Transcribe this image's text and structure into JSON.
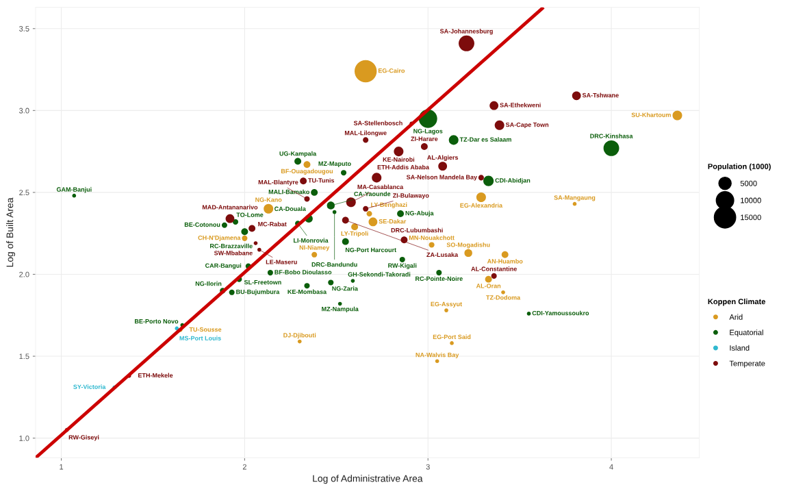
{
  "chart_data": {
    "type": "bubble",
    "xlabel": "Log of Administrative Area",
    "ylabel": "Log of Built Area",
    "legend_title": [
      "Population (1000)",
      "Koppen Climate"
    ],
    "size_legend": [
      5000,
      10000,
      15000
    ],
    "legend": "right",
    "grid": true,
    "xlim": [
      0.86,
      4.48
    ],
    "ylim": [
      0.88,
      3.63
    ],
    "xticks": [
      1,
      2,
      3,
      4
    ],
    "yticks": [
      {
        "value": 1,
        "label": "1.0"
      },
      1.5,
      {
        "value": 2,
        "label": "2.0"
      },
      2.5,
      {
        "value": 3,
        "label": "3.0"
      },
      3.5
    ],
    "series": [
      {
        "name": "Arid",
        "color": "#d99a20",
        "x": [
          2.66,
          4.36,
          3.29,
          3.8,
          2.13,
          2.34,
          2.0,
          2.38,
          3.02,
          3.22,
          3.42,
          3.33,
          3.41,
          3.1,
          3.13,
          3.05,
          2.3,
          2.6,
          2.7,
          2.68,
          1.65
        ],
        "values": [
          3.24,
          2.97,
          2.47,
          2.43,
          2.4,
          2.67,
          2.22,
          2.12,
          2.18,
          2.13,
          2.12,
          1.97,
          1.89,
          1.78,
          1.58,
          1.47,
          1.59,
          2.29,
          2.32,
          2.37,
          1.66
        ],
        "sizes": [
          16000,
          3000,
          3000,
          500,
          3000,
          1500,
          1000,
          1000,
          1000,
          2000,
          1500,
          1500,
          500,
          500,
          500,
          500,
          500,
          1500,
          2500,
          1000,
          500
        ]
      },
      {
        "name": "Equatorial",
        "color": "#0b5e0b",
        "x": [
          3.0,
          3.14,
          4.0,
          3.33,
          2.29,
          2.54,
          2.38,
          2.47,
          2.35,
          2.49,
          1.07,
          1.95,
          1.89,
          2.0,
          2.29,
          2.85,
          2.55,
          2.86,
          3.06,
          3.55,
          2.02,
          2.14,
          1.97,
          1.88,
          1.93,
          2.34,
          2.59,
          2.47,
          2.52,
          1.66
        ],
        "values": [
          2.95,
          2.82,
          2.77,
          2.57,
          2.69,
          2.62,
          2.5,
          2.42,
          2.34,
          2.38,
          2.48,
          2.32,
          2.3,
          2.26,
          2.31,
          2.37,
          2.2,
          2.09,
          2.01,
          1.76,
          2.05,
          2.01,
          1.97,
          1.9,
          1.89,
          1.93,
          1.96,
          1.95,
          1.82,
          1.69
        ],
        "sizes": [
          11000,
          3000,
          8000,
          3500,
          1500,
          1000,
          1500,
          2000,
          2000,
          500,
          500,
          1000,
          1000,
          1500,
          1000,
          1500,
          1500,
          1000,
          1000,
          500,
          1000,
          1000,
          1000,
          1000,
          1000,
          1000,
          500,
          1000,
          500,
          500
        ]
      },
      {
        "name": "Island",
        "color": "#2fb8cf",
        "x": [
          1.63,
          1.29
        ],
        "values": [
          1.67,
          1.31
        ],
        "sizes": [
          500,
          500
        ]
      },
      {
        "name": "Temperate",
        "color": "#7d0c0c",
        "x": [
          3.21,
          3.81,
          3.36,
          3.39,
          2.91,
          2.66,
          2.84,
          2.98,
          3.08,
          3.29,
          2.72,
          2.32,
          2.34,
          2.58,
          2.66,
          2.55,
          2.04,
          1.92,
          2.06,
          2.08,
          2.87,
          3.36,
          1.37,
          1.03
        ],
        "values": [
          3.41,
          3.09,
          3.03,
          2.91,
          2.92,
          2.82,
          2.75,
          2.78,
          2.66,
          2.59,
          2.59,
          2.57,
          2.46,
          2.44,
          2.4,
          2.33,
          2.28,
          2.34,
          2.19,
          2.15,
          2.21,
          1.99,
          1.38,
          1.05
        ],
        "sizes": [
          8000,
          2500,
          2500,
          3000,
          500,
          1000,
          3000,
          1500,
          2500,
          1000,
          3000,
          1500,
          1000,
          3000,
          1000,
          1500,
          1500,
          2500,
          500,
          500,
          1500,
          1000,
          500,
          500
        ]
      },
      {
        "type": "line",
        "color": "#cc0000",
        "x": [
          0.86,
          3.63
        ],
        "values": [
          0.88,
          3.63
        ]
      }
    ],
    "annotations": [
      {
        "text": "EG-Cairo",
        "x": 2.66,
        "y": 3.24
      },
      {
        "text": "SU-Khartoum",
        "x": 4.36,
        "y": 2.97
      },
      {
        "text": "EG-Alexandria",
        "x": 3.29,
        "y": 2.47
      },
      {
        "text": "SA-Mangaung",
        "x": 3.8,
        "y": 2.43
      },
      {
        "text": "NG-Kano",
        "x": 2.13,
        "y": 2.4
      },
      {
        "text": "BF-Ouagadougou",
        "x": 2.34,
        "y": 2.67
      },
      {
        "text": "CH-N'Djamena",
        "x": 2.0,
        "y": 2.22
      },
      {
        "text": "NI-Niamey",
        "x": 2.38,
        "y": 2.12
      },
      {
        "text": "MN-Nouakchott",
        "x": 3.02,
        "y": 2.18
      },
      {
        "text": "SO-Mogadishu",
        "x": 3.22,
        "y": 2.13
      },
      {
        "text": "AN-Huambo",
        "x": 3.42,
        "y": 2.12
      },
      {
        "text": "AL-Oran",
        "x": 3.33,
        "y": 1.97
      },
      {
        "text": "TZ-Dodoma",
        "x": 3.41,
        "y": 1.89
      },
      {
        "text": "EG-Assyut",
        "x": 3.1,
        "y": 1.78
      },
      {
        "text": "EG-Port Said",
        "x": 3.13,
        "y": 1.58
      },
      {
        "text": "NA-Walvis Bay",
        "x": 3.05,
        "y": 1.47
      },
      {
        "text": "DJ-Djibouti",
        "x": 2.3,
        "y": 1.59
      },
      {
        "text": "LY-Tripoli",
        "x": 2.6,
        "y": 2.29
      },
      {
        "text": "SE-Dakar",
        "x": 2.7,
        "y": 2.32
      },
      {
        "text": "LY-Benghazi",
        "x": 2.68,
        "y": 2.37
      },
      {
        "text": "TU-Sousse",
        "x": 1.65,
        "y": 1.66
      },
      {
        "text": "NG-Lagos",
        "x": 3.0,
        "y": 2.95
      },
      {
        "text": "TZ-Dar es Salaam",
        "x": 3.14,
        "y": 2.82
      },
      {
        "text": "DRC-Kinshasa",
        "x": 4.0,
        "y": 2.77
      },
      {
        "text": "CDI-Abidjan",
        "x": 3.33,
        "y": 2.57
      },
      {
        "text": "UG-Kampala",
        "x": 2.29,
        "y": 2.69
      },
      {
        "text": "MZ-Maputo",
        "x": 2.54,
        "y": 2.62
      },
      {
        "text": "MALI-Bamako",
        "x": 2.38,
        "y": 2.5
      },
      {
        "text": "CA-Yaounde",
        "x": 2.47,
        "y": 2.42
      },
      {
        "text": "CA-Douala",
        "x": 2.35,
        "y": 2.34
      },
      {
        "text": "DRC-Bandundu",
        "x": 2.49,
        "y": 2.38
      },
      {
        "text": "GAM-Banjui",
        "x": 1.07,
        "y": 2.48
      },
      {
        "text": "TO-Lome",
        "x": 1.95,
        "y": 2.32
      },
      {
        "text": "BE-Cotonou",
        "x": 1.89,
        "y": 2.3
      },
      {
        "text": "RC-Brazzaville",
        "x": 2.0,
        "y": 2.26
      },
      {
        "text": "LI-Monrovia",
        "x": 2.29,
        "y": 2.31
      },
      {
        "text": "NG-Abuja",
        "x": 2.85,
        "y": 2.37
      },
      {
        "text": "NG-Port Harcourt",
        "x": 2.55,
        "y": 2.2
      },
      {
        "text": "RW-Kigali",
        "x": 2.86,
        "y": 2.09
      },
      {
        "text": "RC-Pointe-Noire",
        "x": 3.06,
        "y": 2.01
      },
      {
        "text": "CDI-Yamoussoukro",
        "x": 3.55,
        "y": 1.76
      },
      {
        "text": "CAR-Bangui",
        "x": 2.02,
        "y": 2.05
      },
      {
        "text": "BF-Bobo Dioulasso",
        "x": 2.14,
        "y": 2.01
      },
      {
        "text": "SL-Freetown",
        "x": 1.97,
        "y": 1.97
      },
      {
        "text": "NG-Ilorin",
        "x": 1.88,
        "y": 1.9
      },
      {
        "text": "BU-Bujumbura",
        "x": 1.93,
        "y": 1.89
      },
      {
        "text": "KE-Mombasa",
        "x": 2.34,
        "y": 1.93
      },
      {
        "text": "GH-Sekondi-Takoradi",
        "x": 2.59,
        "y": 1.96
      },
      {
        "text": "NG-Zaria",
        "x": 2.47,
        "y": 1.95
      },
      {
        "text": "MZ-Nampula",
        "x": 2.52,
        "y": 1.82
      },
      {
        "text": "BE-Porto Novo",
        "x": 1.66,
        "y": 1.69
      },
      {
        "text": "MS-Port Louis",
        "x": 1.63,
        "y": 1.67
      },
      {
        "text": "SY-Victoria",
        "x": 1.29,
        "y": 1.31
      },
      {
        "text": "SA-Johannesburg",
        "x": 3.21,
        "y": 3.41
      },
      {
        "text": "SA-Tshwane",
        "x": 3.81,
        "y": 3.09
      },
      {
        "text": "SA-Ethekweni",
        "x": 3.36,
        "y": 3.03
      },
      {
        "text": "SA-Cape Town",
        "x": 3.39,
        "y": 2.91
      },
      {
        "text": "SA-Stellenbosch",
        "x": 2.91,
        "y": 2.92
      },
      {
        "text": "MAL-Lilongwe",
        "x": 2.66,
        "y": 2.82
      },
      {
        "text": "KE-Nairobi",
        "x": 2.84,
        "y": 2.75
      },
      {
        "text": "ZI-Harare",
        "x": 2.98,
        "y": 2.78
      },
      {
        "text": "AL-Algiers",
        "x": 3.08,
        "y": 2.66
      },
      {
        "text": "SA-Nelson Mandela Bay",
        "x": 3.29,
        "y": 2.59
      },
      {
        "text": "ETH-Addis Ababa",
        "x": 2.72,
        "y": 2.59
      },
      {
        "text": "TU-Tunis",
        "x": 2.32,
        "y": 2.57
      },
      {
        "text": "MAL-Blantyre",
        "x": 2.34,
        "y": 2.46
      },
      {
        "text": "MA-Casablanca",
        "x": 2.58,
        "y": 2.44
      },
      {
        "text": "ZI-Bulawayo",
        "x": 2.66,
        "y": 2.4
      },
      {
        "text": "ZA-Lusaka",
        "x": 2.55,
        "y": 2.33
      },
      {
        "text": "MC-Rabat",
        "x": 2.04,
        "y": 2.28
      },
      {
        "text": "MAD-Antananarivo",
        "x": 1.92,
        "y": 2.34
      },
      {
        "text": "SW-Mbabane",
        "x": 2.06,
        "y": 2.19
      },
      {
        "text": "LE-Maseru",
        "x": 2.08,
        "y": 2.15
      },
      {
        "text": "DRC-Lubumbashi",
        "x": 2.87,
        "y": 2.21
      },
      {
        "text": "AL-Constantine",
        "x": 3.36,
        "y": 1.99
      },
      {
        "text": "ETH-Mekele",
        "x": 1.37,
        "y": 1.38
      },
      {
        "text": "RW-Giseyi",
        "x": 1.03,
        "y": 1.05
      }
    ]
  }
}
